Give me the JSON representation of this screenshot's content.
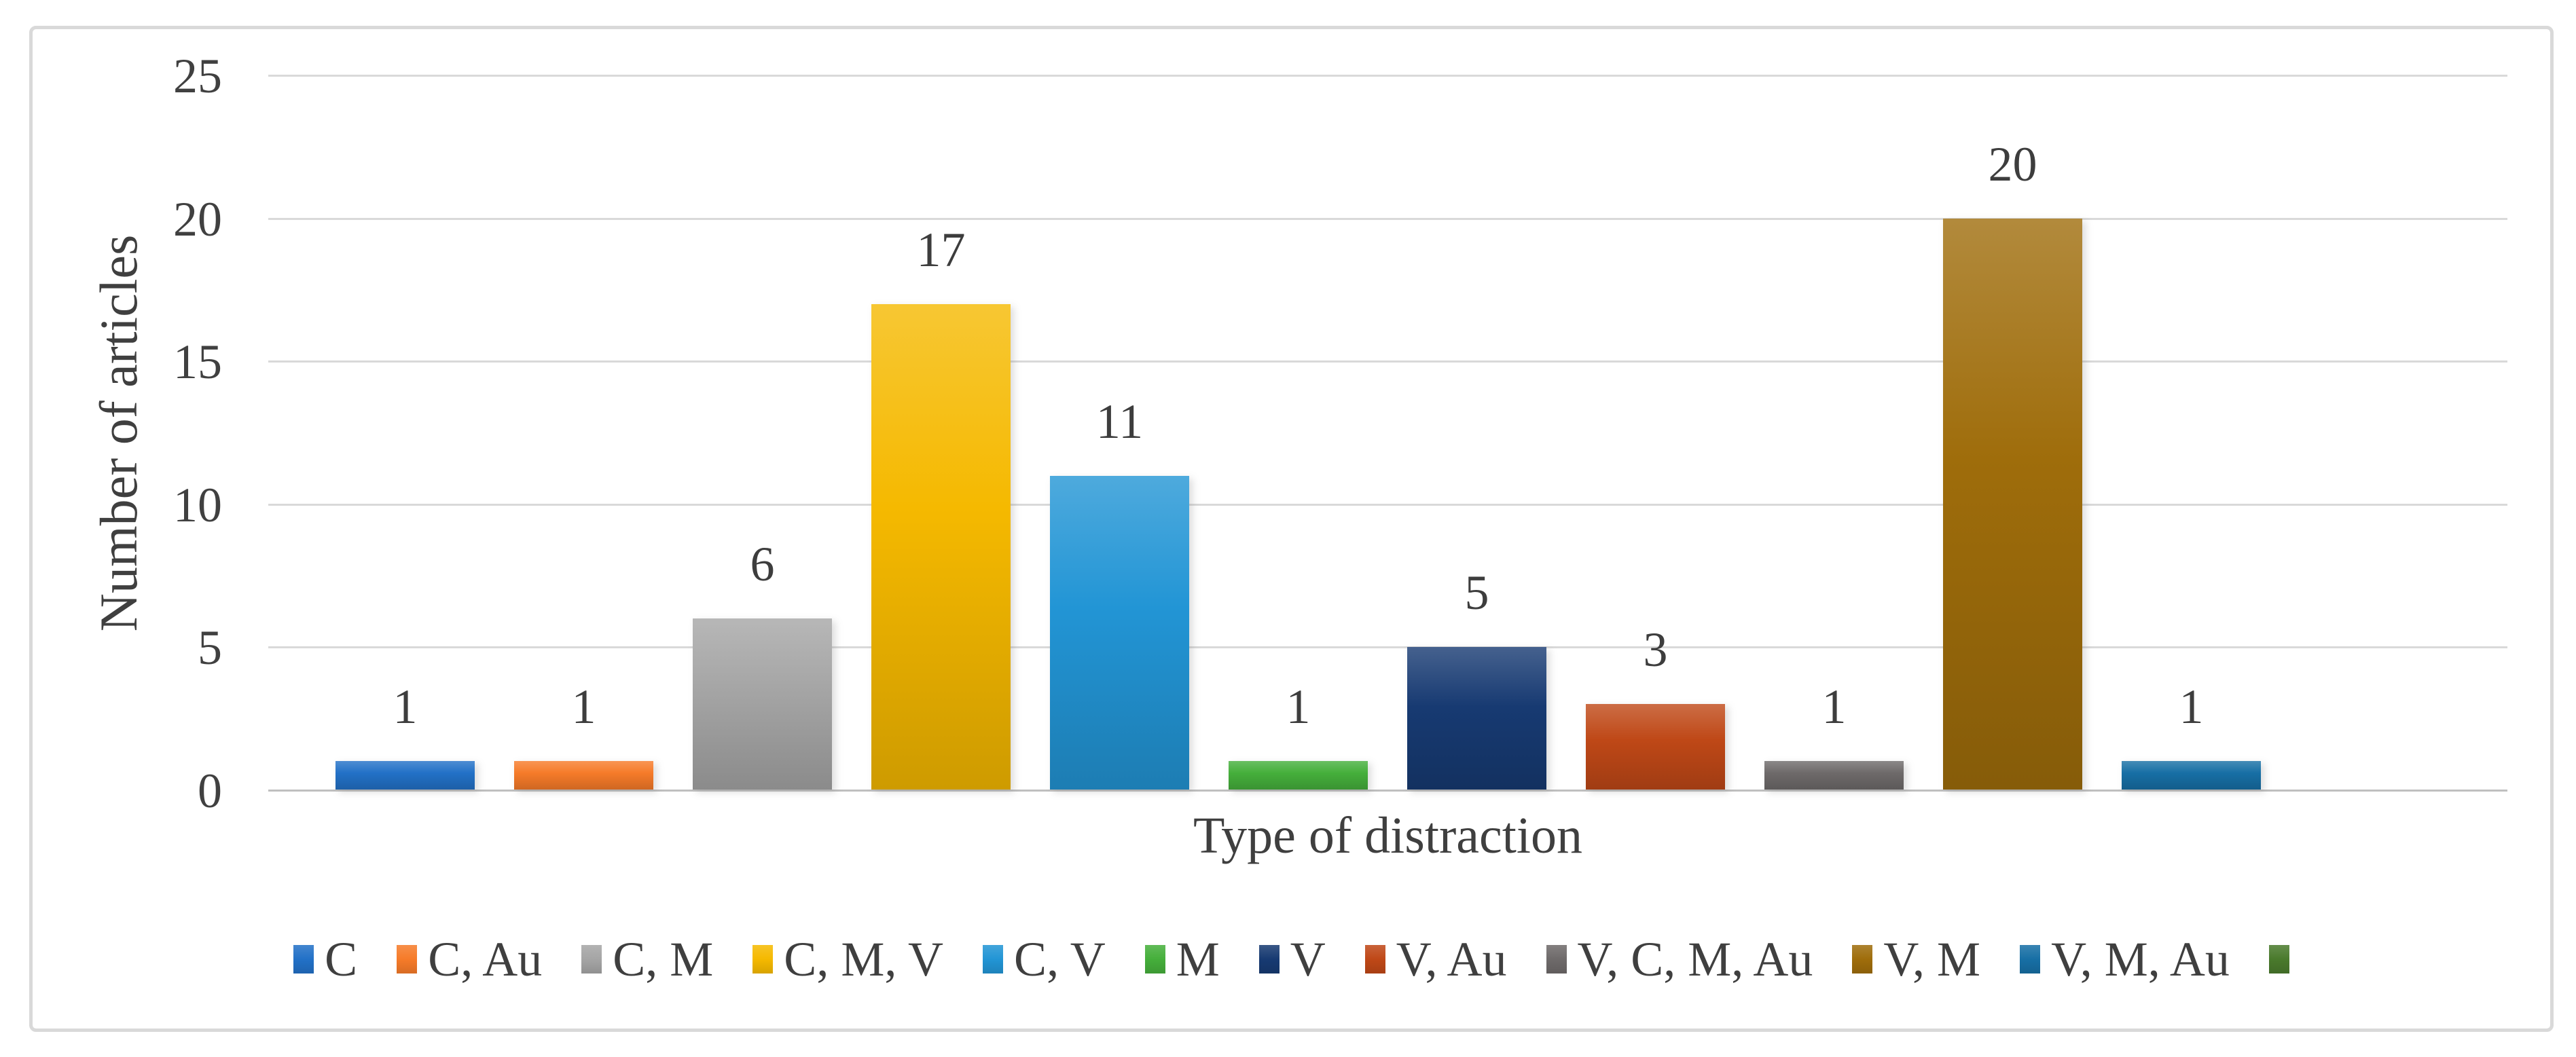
{
  "colors": {
    "background": "#ffffff",
    "frame_border": "#d9d9d9",
    "gridline": "#d9d9d9",
    "axis_line": "#bfbfbf",
    "text": "#3f3f3f"
  },
  "chart_data": {
    "type": "bar",
    "title": "",
    "xlabel": "Type of distraction",
    "ylabel": "Number of articles",
    "ylim": [
      0,
      25
    ],
    "yticks": [
      0,
      5,
      10,
      15,
      20,
      25
    ],
    "grid": true,
    "legend_position": "bottom",
    "categories": [
      "C",
      "C, Au",
      "C, M",
      "C, M, V",
      "C, V",
      "M",
      "V",
      "V, Au",
      "V, C, M, Au",
      "V, M",
      "V, M, Au",
      ""
    ],
    "values": [
      1,
      1,
      6,
      17,
      11,
      1,
      5,
      3,
      1,
      20,
      1,
      0
    ],
    "data_labels": [
      "1",
      "1",
      "6",
      "17",
      "11",
      "1",
      "5",
      "3",
      "1",
      "20",
      "1",
      ""
    ],
    "colors": [
      "#2271c7",
      "#f67b29",
      "#a5a5a5",
      "#f5b900",
      "#2295d5",
      "#45af3b",
      "#173a72",
      "#bf4817",
      "#6e6a6a",
      "#9f6d0b",
      "#176fa5",
      "#4a7a2c"
    ]
  }
}
